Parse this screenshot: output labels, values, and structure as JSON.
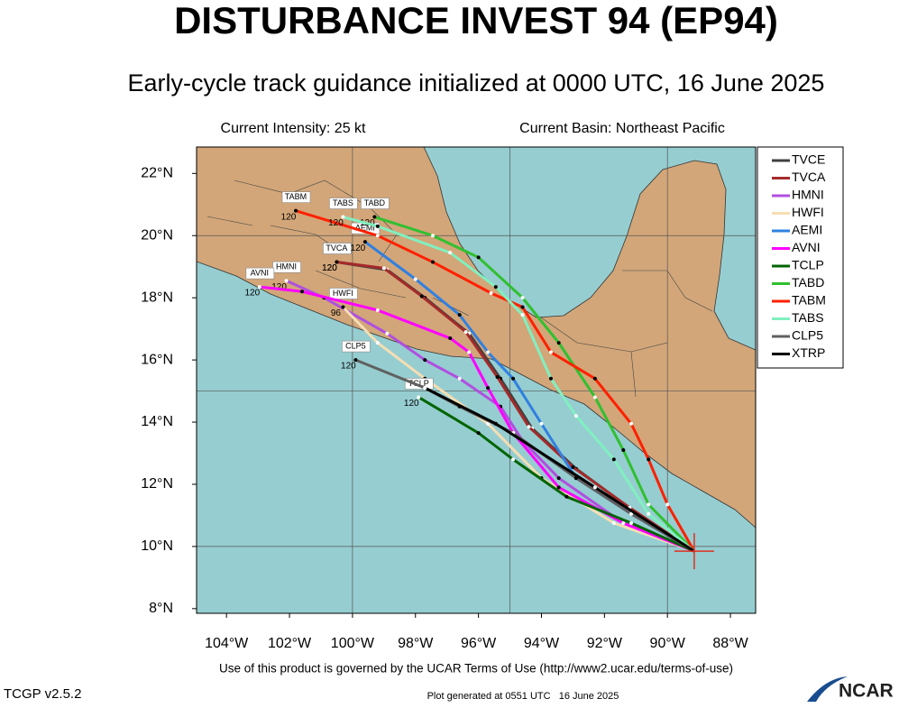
{
  "header": {
    "title": "DISTURBANCE INVEST 94 (EP94)",
    "subtitle": "Early-cycle track guidance initialized at 0000 UTC, 16 June 2025",
    "intensity": "Current Intensity: 25 kt",
    "basin": "Current Basin: Northeast Pacific"
  },
  "map": {
    "type": "track",
    "xlim": [
      -104.95,
      -87.2
    ],
    "ylim": [
      7.85,
      22.85
    ],
    "xticks": [
      {
        "value": -104,
        "label": "104°W"
      },
      {
        "value": -102,
        "label": "102°W"
      },
      {
        "value": -100,
        "label": "100°W"
      },
      {
        "value": -98,
        "label": "98°W"
      },
      {
        "value": -96,
        "label": "96°W"
      },
      {
        "value": -94,
        "label": "94°W"
      },
      {
        "value": -92,
        "label": "92°W"
      },
      {
        "value": -90,
        "label": "90°W"
      },
      {
        "value": -88,
        "label": "88°W"
      }
    ],
    "yticks": [
      {
        "value": 8,
        "label": "8°N"
      },
      {
        "value": 10,
        "label": "10°N"
      },
      {
        "value": 12,
        "label": "12°N"
      },
      {
        "value": 14,
        "label": "14°N"
      },
      {
        "value": 16,
        "label": "16°N"
      },
      {
        "value": 18,
        "label": "18°N"
      },
      {
        "value": 20,
        "label": "20°N"
      },
      {
        "value": 22,
        "label": "22°N"
      }
    ],
    "grid_lon": [
      -100,
      -95,
      -90
    ],
    "grid_lat": [
      10,
      15,
      20
    ],
    "center": {
      "lon": -89.15,
      "lat": 9.85
    },
    "series": [
      {
        "name": "TVCE",
        "color": "#404040",
        "end_label": "120",
        "lon": [
          -89.15,
          -91.15,
          -92.9,
          -94.3,
          -95.3,
          -96.3,
          -97.7,
          -98.9,
          -100.5
        ],
        "lat": [
          9.85,
          11.2,
          12.5,
          13.8,
          15.4,
          16.85,
          18.0,
          18.9,
          19.15
        ]
      },
      {
        "name": "TVCA",
        "color": "#a52a2a",
        "end_label": "120",
        "lon": [
          -89.15,
          -91.2,
          -93.0,
          -94.4,
          -95.4,
          -96.4,
          -97.8,
          -99.0,
          -100.5
        ],
        "lat": [
          9.85,
          11.25,
          12.55,
          13.85,
          15.45,
          16.9,
          18.05,
          18.95,
          19.15
        ]
      },
      {
        "name": "HMNI",
        "color": "#b04fe0",
        "end_label": "120",
        "lon": [
          -89.15,
          -91.4,
          -93.45,
          -94.6,
          -95.3,
          -96.6,
          -97.7,
          -98.9,
          -100.9,
          -102.1
        ],
        "lat": [
          9.85,
          10.75,
          12.2,
          13.4,
          14.5,
          15.4,
          16.0,
          16.85,
          18.0,
          18.55
        ]
      },
      {
        "name": "HWFI",
        "color": "#f5deb3",
        "end_label": "96",
        "lon": [
          -89.15,
          -91.7,
          -94.0,
          -95.7,
          -97.7,
          -99.2,
          -100.3
        ],
        "lat": [
          9.85,
          10.75,
          12.2,
          13.95,
          15.4,
          16.55,
          17.7
        ]
      },
      {
        "name": "AEMI",
        "color": "#3080e0",
        "end_label": "120",
        "lon": [
          -89.15,
          -91.15,
          -92.9,
          -94.0,
          -94.9,
          -95.7,
          -96.6,
          -98.0,
          -99.6
        ],
        "lat": [
          9.85,
          11.05,
          12.2,
          13.95,
          15.4,
          16.25,
          17.45,
          18.6,
          19.8
        ]
      },
      {
        "name": "AVNI",
        "color": "#ff00ff",
        "end_label": "120",
        "lon": [
          -89.15,
          -91.4,
          -93.45,
          -94.9,
          -95.7,
          -96.3,
          -96.9,
          -99.2,
          -101.6,
          -102.95
        ],
        "lat": [
          9.85,
          10.75,
          11.9,
          13.65,
          15.1,
          16.25,
          16.7,
          17.6,
          18.2,
          18.35
        ]
      },
      {
        "name": "TCLP",
        "color": "#006400",
        "end_label": "120",
        "lon": [
          -89.15,
          -91.15,
          -93.2,
          -94.9,
          -96.0,
          -97.9
        ],
        "lat": [
          9.85,
          10.75,
          11.6,
          12.8,
          13.65,
          14.8
        ]
      },
      {
        "name": "TABD",
        "color": "#30c030",
        "end_label": "120",
        "lon": [
          -89.15,
          -90.6,
          -91.4,
          -92.3,
          -93.45,
          -94.6,
          -96.0,
          -97.45,
          -99.3
        ],
        "lat": [
          9.85,
          11.35,
          13.1,
          14.8,
          16.55,
          18.0,
          19.3,
          20.0,
          20.6
        ]
      },
      {
        "name": "TABM",
        "color": "#ff2000",
        "end_label": "120",
        "lon": [
          -89.15,
          -90.0,
          -90.6,
          -91.15,
          -92.3,
          -93.7,
          -94.6,
          -95.6,
          -97.45,
          -99.2,
          -101.8
        ],
        "lat": [
          9.85,
          11.35,
          12.8,
          13.95,
          15.4,
          16.25,
          17.7,
          18.15,
          19.15,
          20.0,
          20.8
        ]
      },
      {
        "name": "TABS",
        "color": "#80f0c0",
        "end_label": "120",
        "lon": [
          -89.15,
          -90.6,
          -91.7,
          -92.9,
          -93.7,
          -94.6,
          -95.45,
          -96.9,
          -99.2,
          -100.3
        ],
        "lat": [
          9.85,
          11.05,
          12.8,
          14.2,
          15.4,
          17.45,
          18.35,
          19.45,
          20.3,
          20.6
        ]
      },
      {
        "name": "CLP5",
        "color": "#606060",
        "end_label": "120",
        "lon": [
          -89.15,
          -91.15,
          -92.9,
          -94.9,
          -96.6,
          -97.7,
          -99.9
        ],
        "lat": [
          9.85,
          11.05,
          12.2,
          13.65,
          14.5,
          15.1,
          16.0
        ]
      },
      {
        "name": "XTRP",
        "color": "#000000",
        "lon": [
          -89.15,
          -92.3,
          -95.45,
          -97.7
        ],
        "lat": [
          9.85,
          11.9,
          13.95,
          15.1
        ]
      }
    ]
  },
  "footer": {
    "terms": "Use of this product is governed by the UCAR Terms of Use (http://www2.ucar.edu/terms-of-use)",
    "version": "TCGP v2.5.2",
    "generated": "Plot generated at 0551 UTC   16 June 2025",
    "logo": "NCAR"
  }
}
